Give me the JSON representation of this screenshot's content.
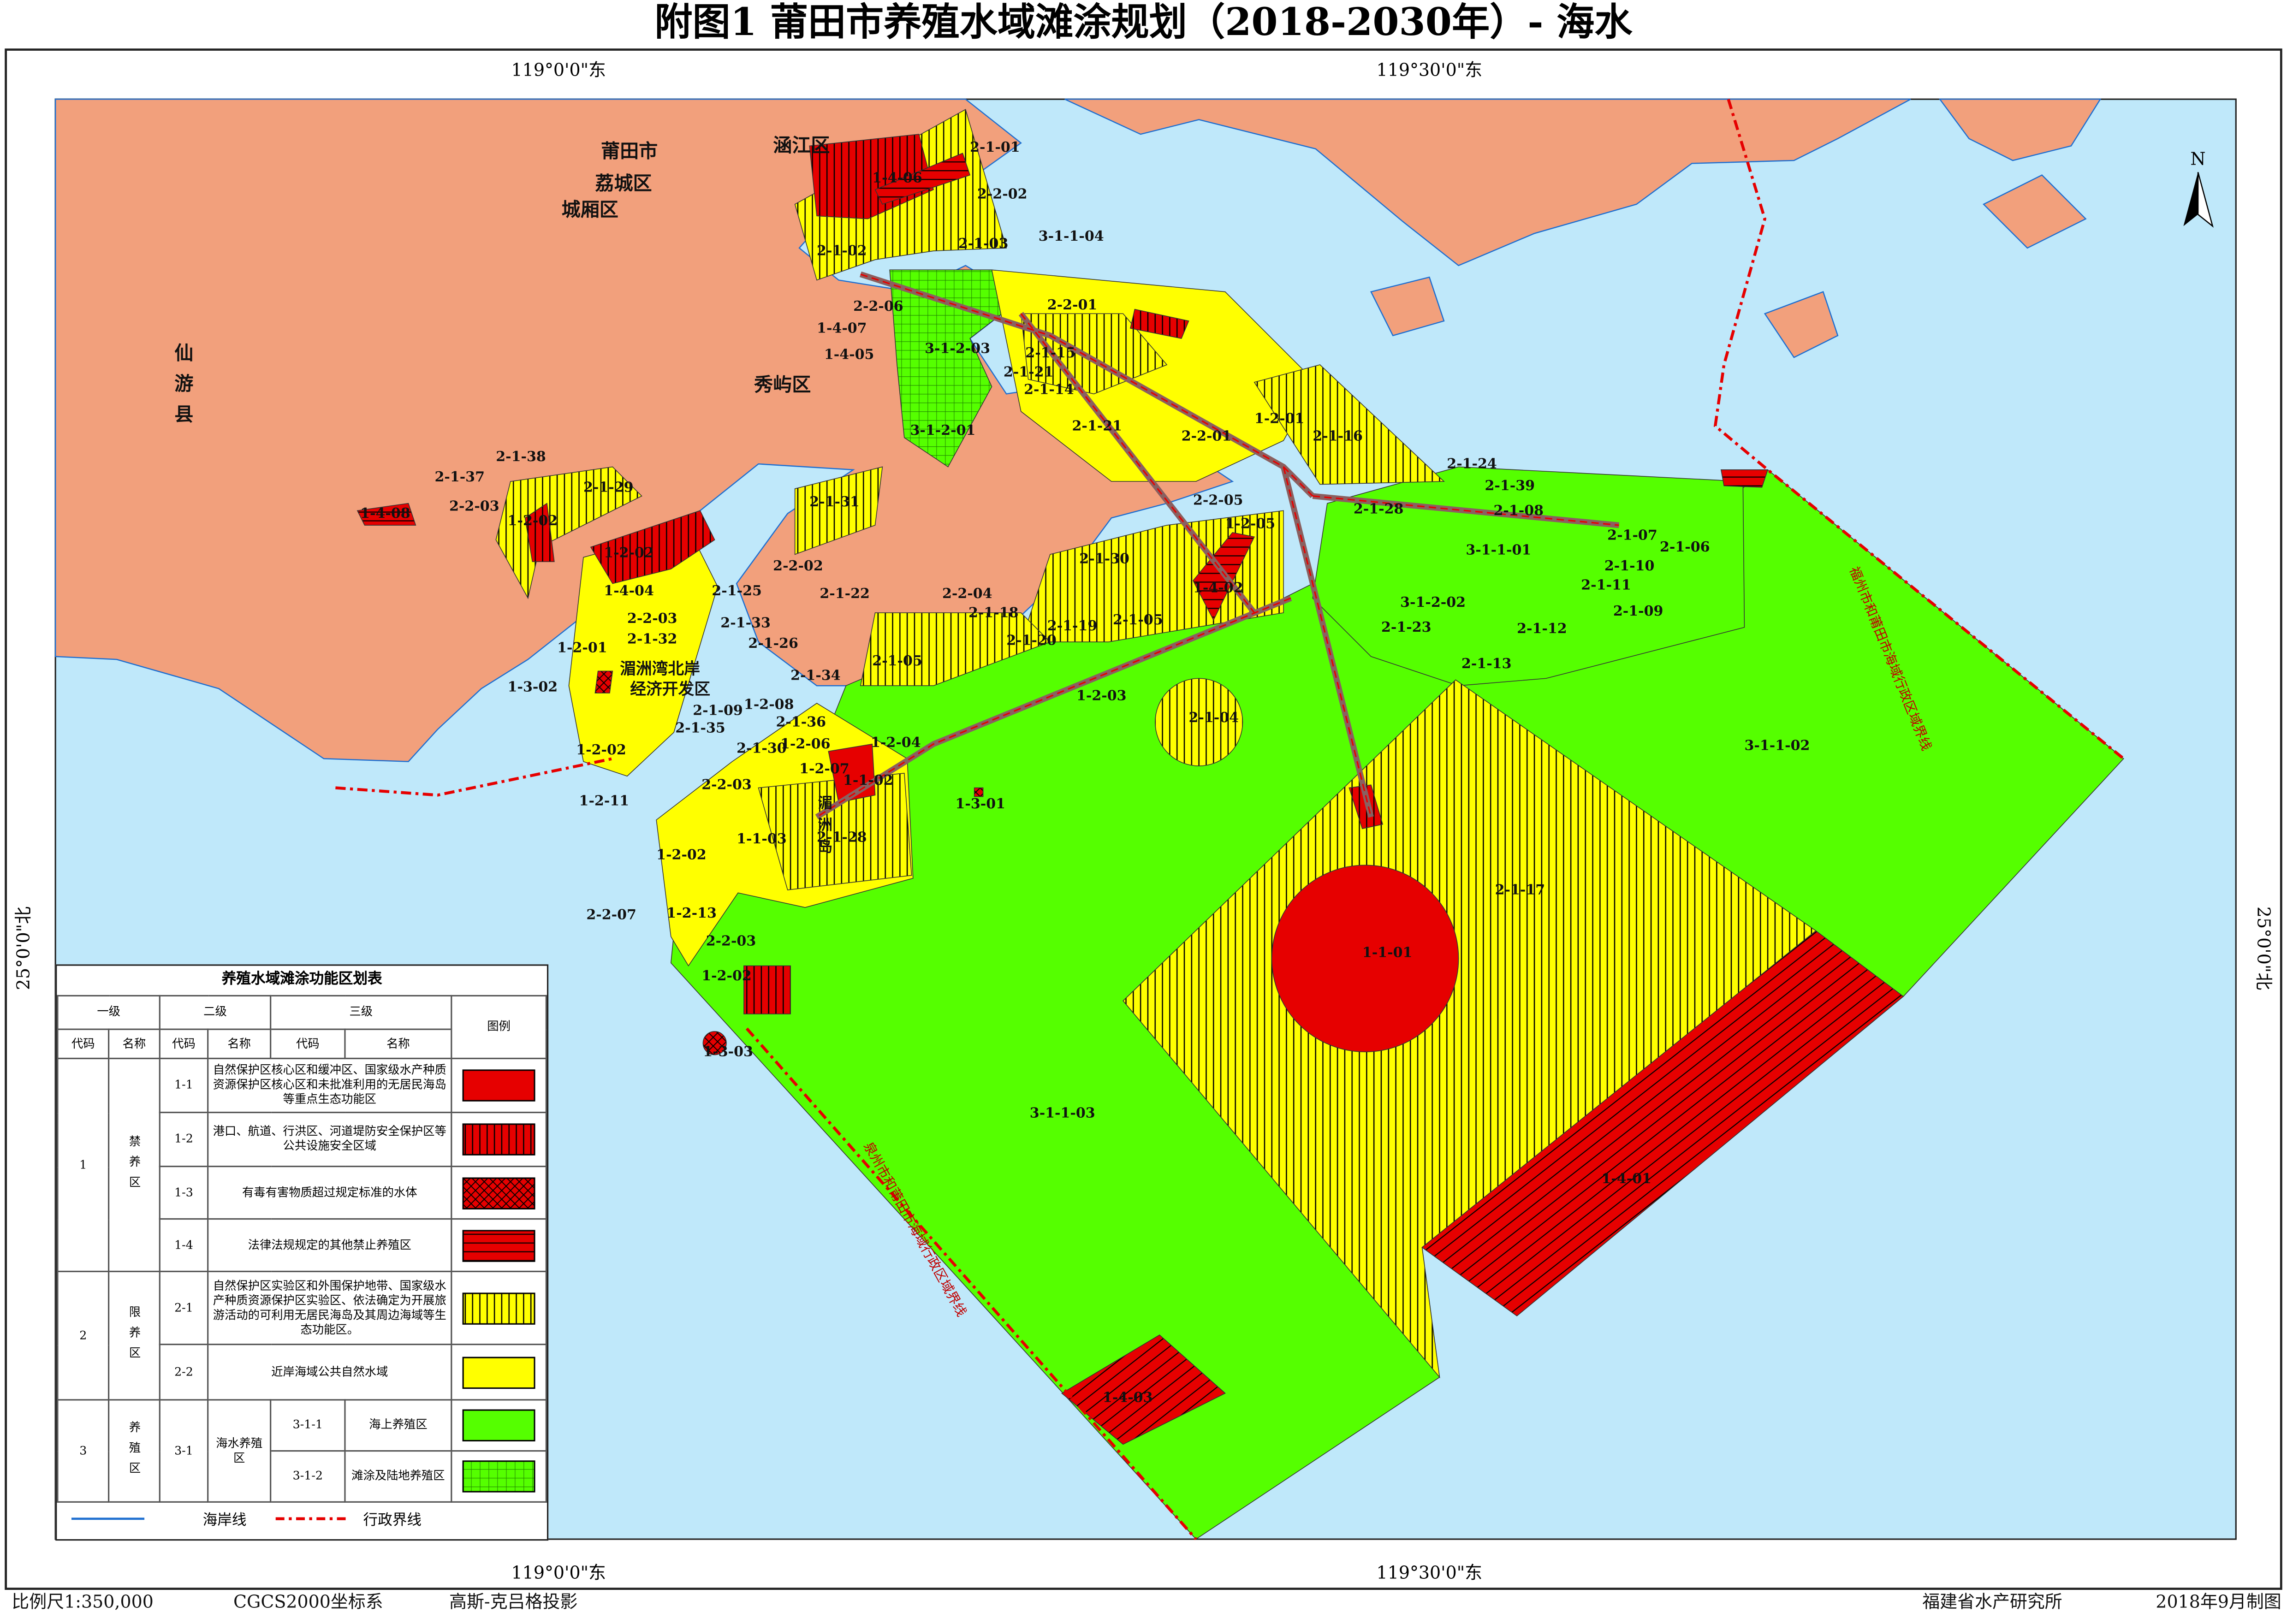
{
  "title": "附图1  莆田市养殖水域滩涂规划（2018-2030年）- 海水",
  "graticule": {
    "top": [
      "119°0'0\"东",
      "119°30'0\"东"
    ],
    "bottom": [
      "119°0'0\"东",
      "119°30'0\"东"
    ],
    "left": "25°0'0\"北",
    "right": "25°0'0\"北"
  },
  "north": "N",
  "places": [
    "莆田市",
    "荔城区",
    "城厢区",
    "涵江区",
    "秀屿区",
    "仙游县",
    "湄洲湾北岸",
    "经济开发区",
    "湄洲岛"
  ],
  "boundaries": [
    "福州市和莆田市海域行政区域界线",
    "泉州市和莆田市海域行政区域界线"
  ],
  "zones": [
    "2-1-01",
    "1-4-06",
    "2-2-02",
    "2-1-03",
    "2-1-02",
    "3-1-1-04",
    "2-2-01",
    "2-2-06",
    "1-4-07",
    "1-4-05",
    "3-1-2-03",
    "2-1-15",
    "2-1-21",
    "2-1-14",
    "3-1-2-01",
    "2-1-21",
    "2-2-01",
    "1-2-01",
    "2-1-16",
    "2-1-38",
    "2-1-37",
    "2-1-29",
    "2-2-03",
    "1-4-08",
    "1-2-02",
    "2-1-31",
    "2-2-05",
    "1-2-05",
    "2-1-24",
    "2-1-39",
    "2-1-28",
    "2-1-08",
    "2-1-07",
    "2-1-06",
    "3-1-1-01",
    "2-1-10",
    "2-1-11",
    "2-1-09",
    "1-2-02",
    "2-2-02",
    "2-1-30",
    "1-4-02",
    "1-4-04",
    "2-1-25",
    "2-1-22",
    "2-2-04",
    "3-1-2-02",
    "2-1-18",
    "2-2-03",
    "2-1-33",
    "2-1-19",
    "2-1-05",
    "2-1-23",
    "2-1-12",
    "2-1-32",
    "2-1-20",
    "2-1-26",
    "1-2-01",
    "2-1-05",
    "2-1-13",
    "1-3-02",
    "2-1-34",
    "1-2-03",
    "1-2-08",
    "2-1-09",
    "2-1-36",
    "2-1-04",
    "2-1-35",
    "1-2-06",
    "1-2-04",
    "1-2-02",
    "2-1-30",
    "1-2-07",
    "1-1-02",
    "2-2-03",
    "1-2-11",
    "1-3-01",
    "1-1-03",
    "2-1-28",
    "1-2-02",
    "2-1-17",
    "3-1-1-02",
    "2-2-07",
    "1-2-13",
    "2-2-03",
    "1-1-01",
    "1-2-02",
    "1-3-03",
    "3-1-1-03",
    "1-4-01",
    "1-4-03"
  ],
  "legend": {
    "title": "养殖水域滩涂功能区划表",
    "headers": [
      "一级",
      "二级",
      "三级",
      "图例"
    ],
    "subheaders": [
      "代码",
      "名称",
      "代码",
      "名称",
      "代码",
      "名称"
    ],
    "groups": [
      {
        "code": "1",
        "name": "禁养区",
        "rows": [
          {
            "code": "1-1",
            "text": "自然保护区核心区和缓冲区、国家级水产种质资源保护区核心区和未批准利用的无居民海岛等重点生态功能区"
          },
          {
            "code": "1-2",
            "text": "港口、航道、行洪区、河道堤防安全保护区等公共设施安全区域"
          },
          {
            "code": "1-3",
            "text": "有毒有害物质超过规定标准的水体"
          },
          {
            "code": "1-4",
            "text": "法律法规规定的其他禁止养殖区"
          }
        ]
      },
      {
        "code": "2",
        "name": "限养区",
        "rows": [
          {
            "code": "2-1",
            "text": "自然保护区实验区和外围保护地带、国家级水产种质资源保护区实验区、依法确定为开展旅游活动的可利用无居民海岛及其周边海域等生态功能区。"
          },
          {
            "code": "2-2",
            "text": "近岸海域公共自然水域"
          }
        ]
      },
      {
        "code": "3",
        "name": "养殖区",
        "rows": [
          {
            "code": "3-1",
            "name": "海水养殖区",
            "sub": [
              {
                "code": "3-1-1",
                "name": "海上养殖区"
              },
              {
                "code": "3-1-2",
                "name": "滩涂及陆地养殖区"
              }
            ]
          }
        ]
      }
    ],
    "lines": [
      "海岸线",
      "行政界线"
    ]
  },
  "footer": [
    "比例尺1:350,000",
    "CGCS2000坐标系",
    "高斯-克吕格投影",
    "福建省水产研究所",
    "2018年9月制图"
  ]
}
